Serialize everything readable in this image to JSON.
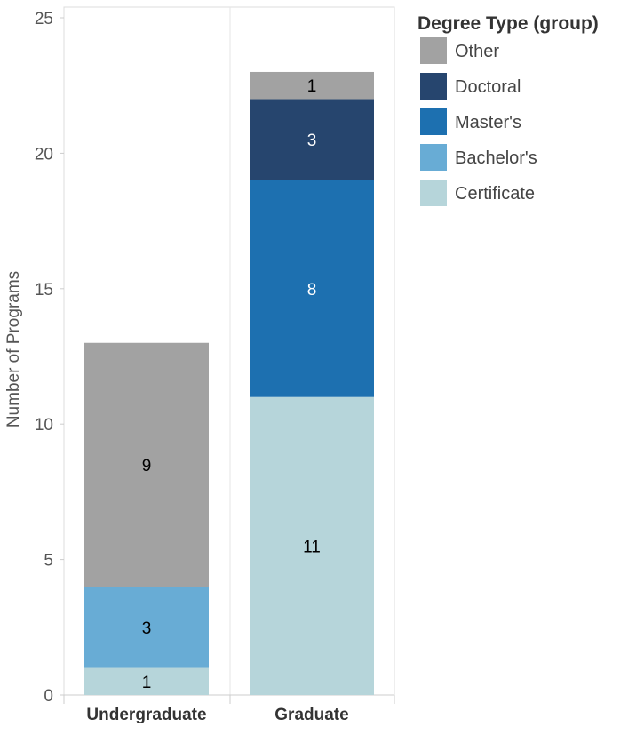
{
  "chart_data": {
    "type": "bar",
    "stacked": true,
    "title": "",
    "xlabel": "",
    "ylabel": "Number of Programs",
    "ylim": [
      0,
      25
    ],
    "yticks": [
      0,
      5,
      10,
      15,
      20,
      25
    ],
    "categories": [
      "Undergraduate",
      "Graduate"
    ],
    "series": [
      {
        "name": "Certificate",
        "color": "#b6d5da",
        "label_color": "#000000",
        "values": [
          1,
          11
        ]
      },
      {
        "name": "Bachelor's",
        "color": "#68acd5",
        "label_color": "#000000",
        "values": [
          3,
          0
        ]
      },
      {
        "name": "Master's",
        "color": "#1d70b0",
        "label_color": "#ffffff",
        "values": [
          0,
          8
        ]
      },
      {
        "name": "Doctoral",
        "color": "#26456e",
        "label_color": "#ffffff",
        "values": [
          0,
          3
        ]
      },
      {
        "name": "Other",
        "color": "#a2a2a2",
        "label_color": "#000000",
        "values": [
          9,
          1
        ]
      }
    ],
    "legend": {
      "title": "Degree Type (group)",
      "position": "top-right",
      "order": [
        "Other",
        "Doctoral",
        "Master's",
        "Bachelor's",
        "Certificate"
      ]
    }
  }
}
